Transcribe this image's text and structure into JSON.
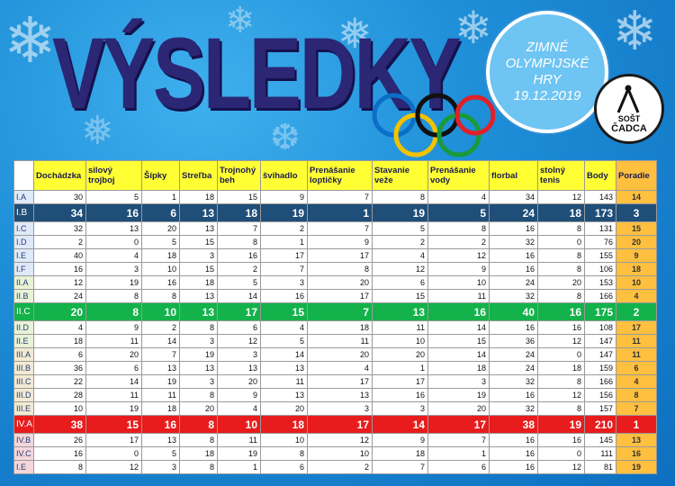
{
  "title": "VÝSLEDKY",
  "badge": {
    "line1": "ZIMNÉ",
    "line2": "OLYMPIJSKÉ",
    "line3": "HRY",
    "line4": "19.12.2019"
  },
  "logo": {
    "line1": "SOŠT",
    "line2": "ČADCA"
  },
  "ring_colors": [
    "#0a6fc8",
    "#f2c200",
    "#111111",
    "#1a9a3a",
    "#e0202a"
  ],
  "table": {
    "headers": [
      "Dochádzka",
      "silový trojboj",
      "Šípky",
      "Streľba",
      "Trojnohý beh",
      "švihadlo",
      "Prenášanie loptičky",
      "Stavanie veže",
      "Prenášanie vody",
      "florbal",
      "stolný tenis",
      "Body",
      "Poradie"
    ],
    "rows": [
      {
        "cls": "I.A",
        "vals": [
          30,
          5,
          1,
          18,
          15,
          9,
          7,
          8,
          4,
          34,
          12,
          143
        ],
        "pos": 14,
        "hl": "",
        "grp": "blue"
      },
      {
        "cls": "I.B",
        "vals": [
          34,
          16,
          6,
          13,
          18,
          19,
          1,
          19,
          5,
          24,
          18,
          173
        ],
        "pos": 3,
        "hl": "blue",
        "grp": "blue"
      },
      {
        "cls": "I.C",
        "vals": [
          32,
          13,
          20,
          13,
          7,
          2,
          7,
          5,
          8,
          16,
          8,
          131
        ],
        "pos": 15,
        "hl": "",
        "grp": "blue"
      },
      {
        "cls": "I.D",
        "vals": [
          2,
          0,
          5,
          15,
          8,
          1,
          9,
          2,
          2,
          32,
          0,
          76
        ],
        "pos": 20,
        "hl": "",
        "grp": "blue"
      },
      {
        "cls": "I.E",
        "vals": [
          40,
          4,
          18,
          3,
          16,
          17,
          17,
          4,
          12,
          16,
          8,
          155
        ],
        "pos": 9,
        "hl": "",
        "grp": "blue"
      },
      {
        "cls": "I.F",
        "vals": [
          16,
          3,
          10,
          15,
          2,
          7,
          8,
          12,
          9,
          16,
          8,
          106
        ],
        "pos": 18,
        "hl": "",
        "grp": "blue"
      },
      {
        "cls": "II.A",
        "vals": [
          12,
          19,
          16,
          18,
          5,
          3,
          20,
          6,
          10,
          24,
          20,
          153
        ],
        "pos": 10,
        "hl": "",
        "grp": "green"
      },
      {
        "cls": "II.B",
        "vals": [
          24,
          8,
          8,
          13,
          14,
          16,
          17,
          15,
          11,
          32,
          8,
          166
        ],
        "pos": 4,
        "hl": "",
        "grp": "green"
      },
      {
        "cls": "II.C",
        "vals": [
          20,
          8,
          10,
          13,
          17,
          15,
          7,
          13,
          16,
          40,
          16,
          175
        ],
        "pos": 2,
        "hl": "green",
        "grp": "green"
      },
      {
        "cls": "II.D",
        "vals": [
          4,
          9,
          2,
          8,
          6,
          4,
          18,
          11,
          14,
          16,
          16,
          108
        ],
        "pos": 17,
        "hl": "",
        "grp": "green"
      },
      {
        "cls": "II.E",
        "vals": [
          18,
          11,
          14,
          3,
          12,
          5,
          11,
          10,
          15,
          36,
          12,
          147
        ],
        "pos": 11,
        "hl": "",
        "grp": "green"
      },
      {
        "cls": "III.A",
        "vals": [
          6,
          20,
          7,
          19,
          3,
          14,
          20,
          20,
          14,
          24,
          0,
          147
        ],
        "pos": 11,
        "hl": "",
        "grp": "gold"
      },
      {
        "cls": "III.B",
        "vals": [
          36,
          6,
          13,
          13,
          13,
          13,
          4,
          1,
          18,
          24,
          18,
          159
        ],
        "pos": 6,
        "hl": "",
        "grp": "gold"
      },
      {
        "cls": "III.C",
        "vals": [
          22,
          14,
          19,
          3,
          20,
          11,
          17,
          17,
          3,
          32,
          8,
          166
        ],
        "pos": 4,
        "hl": "",
        "grp": "gold"
      },
      {
        "cls": "III.D",
        "vals": [
          28,
          11,
          11,
          8,
          9,
          13,
          13,
          16,
          19,
          16,
          12,
          156
        ],
        "pos": 8,
        "hl": "",
        "grp": "gold"
      },
      {
        "cls": "III.E",
        "vals": [
          10,
          19,
          18,
          20,
          4,
          20,
          3,
          3,
          20,
          32,
          8,
          157
        ],
        "pos": 7,
        "hl": "",
        "grp": "gold"
      },
      {
        "cls": "IV.A",
        "vals": [
          38,
          15,
          16,
          8,
          10,
          18,
          17,
          14,
          17,
          38,
          19,
          210
        ],
        "pos": 1,
        "hl": "red",
        "grp": "pink"
      },
      {
        "cls": "IV.B",
        "vals": [
          26,
          17,
          13,
          8,
          11,
          10,
          12,
          9,
          7,
          16,
          16,
          145
        ],
        "pos": 13,
        "hl": "",
        "grp": "pink"
      },
      {
        "cls": "IV.C",
        "vals": [
          16,
          0,
          5,
          18,
          19,
          8,
          10,
          18,
          1,
          16,
          0,
          111
        ],
        "pos": 16,
        "hl": "",
        "grp": "pink"
      },
      {
        "cls": "I.E",
        "vals": [
          8,
          12,
          3,
          8,
          1,
          6,
          2,
          7,
          6,
          16,
          12,
          81
        ],
        "pos": 19,
        "hl": "",
        "grp": "pink"
      }
    ]
  }
}
